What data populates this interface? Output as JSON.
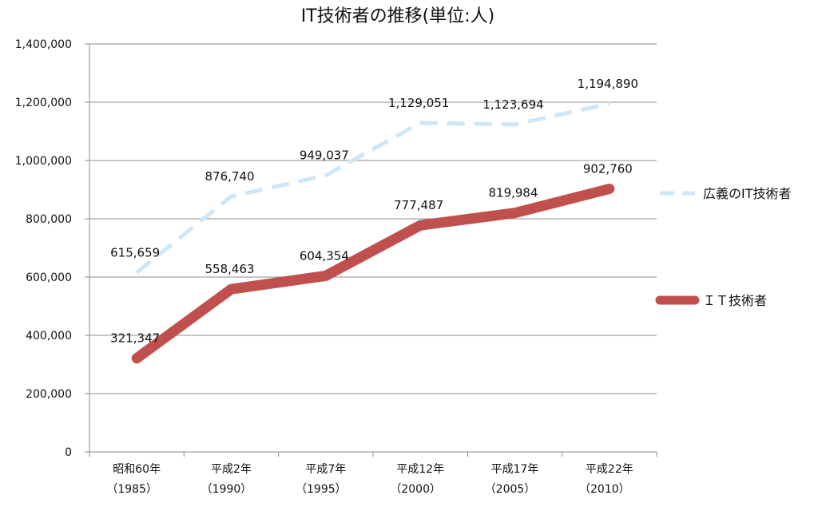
{
  "chart_data": {
    "type": "line",
    "title": "IT技術者の推移(単位:人)",
    "xlabel": "",
    "ylabel": "",
    "ylim": [
      0,
      1400000
    ],
    "yticks": [
      {
        "value": 0,
        "label": "0"
      },
      {
        "value": 200000,
        "label": "200,000"
      },
      {
        "value": 400000,
        "label": "400,000"
      },
      {
        "value": 600000,
        "label": "600,000"
      },
      {
        "value": 800000,
        "label": "800,000"
      },
      {
        "value": 1000000,
        "label": "1,000,000"
      },
      {
        "value": 1200000,
        "label": "1,200,000"
      },
      {
        "value": 1400000,
        "label": "1,400,000"
      }
    ],
    "grid": true,
    "legend_position": "right",
    "categories": [
      {
        "line1": "昭和60年",
        "line2": "（1985）"
      },
      {
        "line1": "平成2年",
        "line2": "（1990）"
      },
      {
        "line1": "平成7年",
        "line2": "（1995）"
      },
      {
        "line1": "平成12年",
        "line2": "（2000）"
      },
      {
        "line1": "平成17年",
        "line2": "（2005）"
      },
      {
        "line1": "平成22年",
        "line2": "（2010）"
      }
    ],
    "series": [
      {
        "name": "広義のIT技術者",
        "color": "#cfe6f7",
        "style": "dashed",
        "values": [
          615659,
          876740,
          949037,
          1129051,
          1123694,
          1194890
        ],
        "labels": [
          "615,659",
          "876,740",
          "949,037",
          "1,129,051",
          "1,123,694",
          "1,194,890"
        ]
      },
      {
        "name": "ＩＴ技術者",
        "color": "#c0504d",
        "style": "solid",
        "values": [
          321347,
          558463,
          604354,
          777487,
          819984,
          902760
        ],
        "labels": [
          "321,347",
          "558,463",
          "604,354",
          "777,487",
          "819,984",
          "902,760"
        ]
      }
    ]
  }
}
